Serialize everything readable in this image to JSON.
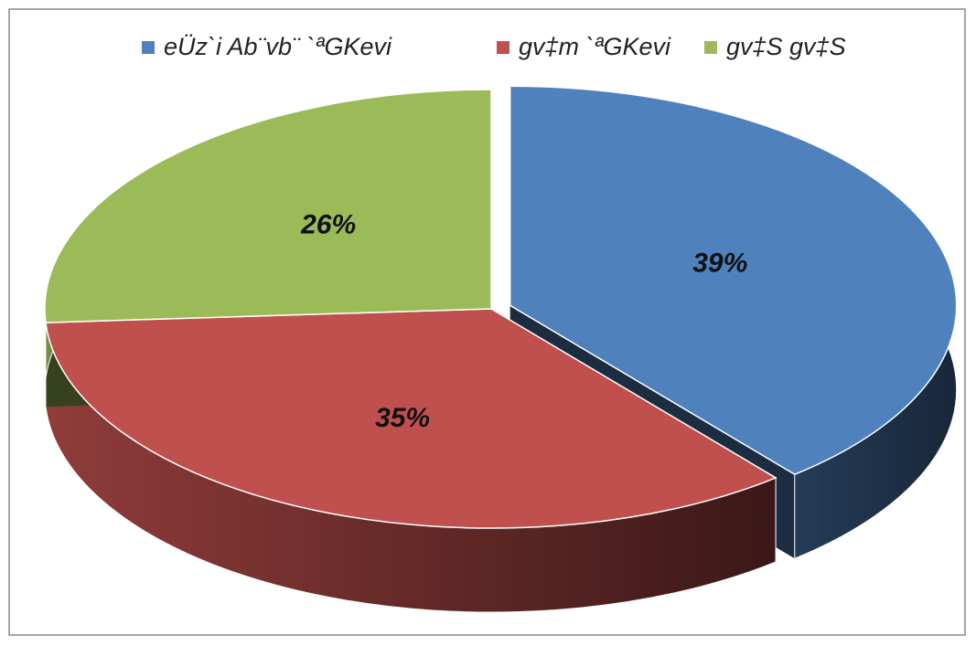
{
  "chart_data": {
    "type": "pie",
    "categories": [
      "eÜz`i Ab¨vb¨ `ªGKevi",
      "gv‡m `ªGKevi",
      "gv‡S gv‡S"
    ],
    "values": [
      39,
      35,
      26
    ],
    "value_labels": [
      "39%",
      "35%",
      "26%"
    ],
    "colors": [
      "#4f81bd",
      "#c0504d",
      "#9bbb59"
    ],
    "legend": "top"
  }
}
